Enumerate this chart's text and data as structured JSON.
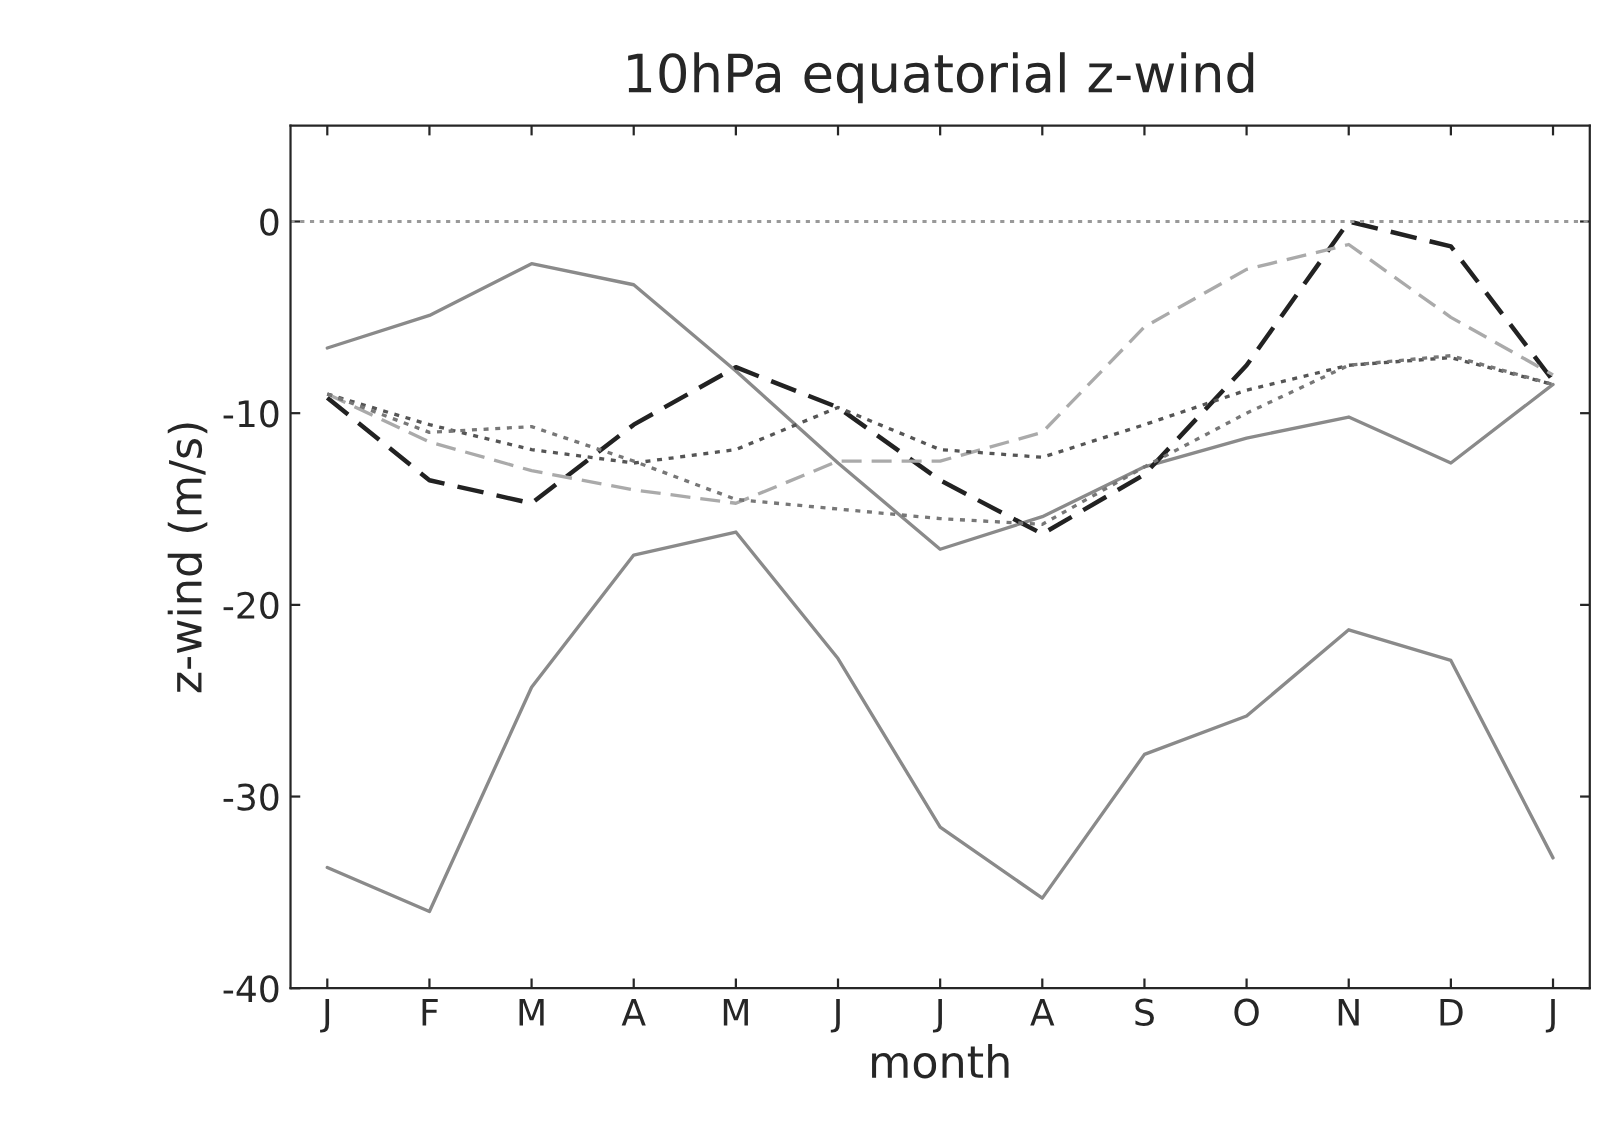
{
  "chart_data": {
    "type": "line",
    "title": "10hPa equatorial z-wind",
    "xlabel": "month",
    "ylabel": "z-wind (m/s)",
    "categories": [
      "J",
      "F",
      "M",
      "A",
      "M",
      "J",
      "J",
      "A",
      "S",
      "O",
      "N",
      "D",
      "J"
    ],
    "series": [
      {
        "color": "#8a8a8a",
        "line_style": "solid",
        "values": [
          -6.6,
          -4.9,
          -2.2,
          -3.3,
          -7.8,
          -12.6,
          -17.1,
          -15.4,
          -12.8,
          -11.3,
          -10.2,
          -12.6,
          -8.5
        ]
      },
      {
        "color": "#8a8a8a",
        "line_style": "solid",
        "values": [
          -33.7,
          -36,
          -24.3,
          -17.4,
          -16.2,
          -22.8,
          -31.6,
          -35.3,
          -27.8,
          -25.8,
          -21.3,
          -22.9,
          -33.2
        ]
      },
      {
        "color": "#222222",
        "line_style": "dashed",
        "values": [
          -9.2,
          -13.5,
          -14.7,
          -10.6,
          -7.6,
          -9.7,
          -13.5,
          -16.3,
          -13.2,
          -7.5,
          0,
          -1.3,
          -8.3
        ]
      },
      {
        "color": "#aaaaaa",
        "line_style": "dashed",
        "values": [
          -9,
          -11.5,
          -13,
          -14,
          -14.7,
          -12.5,
          -12.5,
          -11,
          -5.5,
          -2.5,
          -1.2,
          -5,
          -8
        ]
      },
      {
        "color": "#555555",
        "line_style": "dotted",
        "values": [
          -9,
          -10.6,
          -11.9,
          -12.6,
          -11.9,
          -9.7,
          -11.9,
          -12.3,
          -10.6,
          -8.8,
          -7.5,
          -7.1,
          -8.5
        ]
      },
      {
        "color": "#777777",
        "line_style": "dotted",
        "values": [
          -9,
          -11,
          -10.7,
          -12.5,
          -14.5,
          -15,
          -15.5,
          -15.8,
          -12.8,
          -10,
          -7.5,
          -7,
          -8.5
        ]
      }
    ],
    "ylim": [
      -40,
      5
    ],
    "yticks": [
      -40,
      -30,
      -20,
      -10,
      0
    ],
    "ref_lines": [
      {
        "axis": "y",
        "value": 0,
        "color": "#999999",
        "line_style": "dotted"
      }
    ],
    "grid": false,
    "legend": false
  }
}
